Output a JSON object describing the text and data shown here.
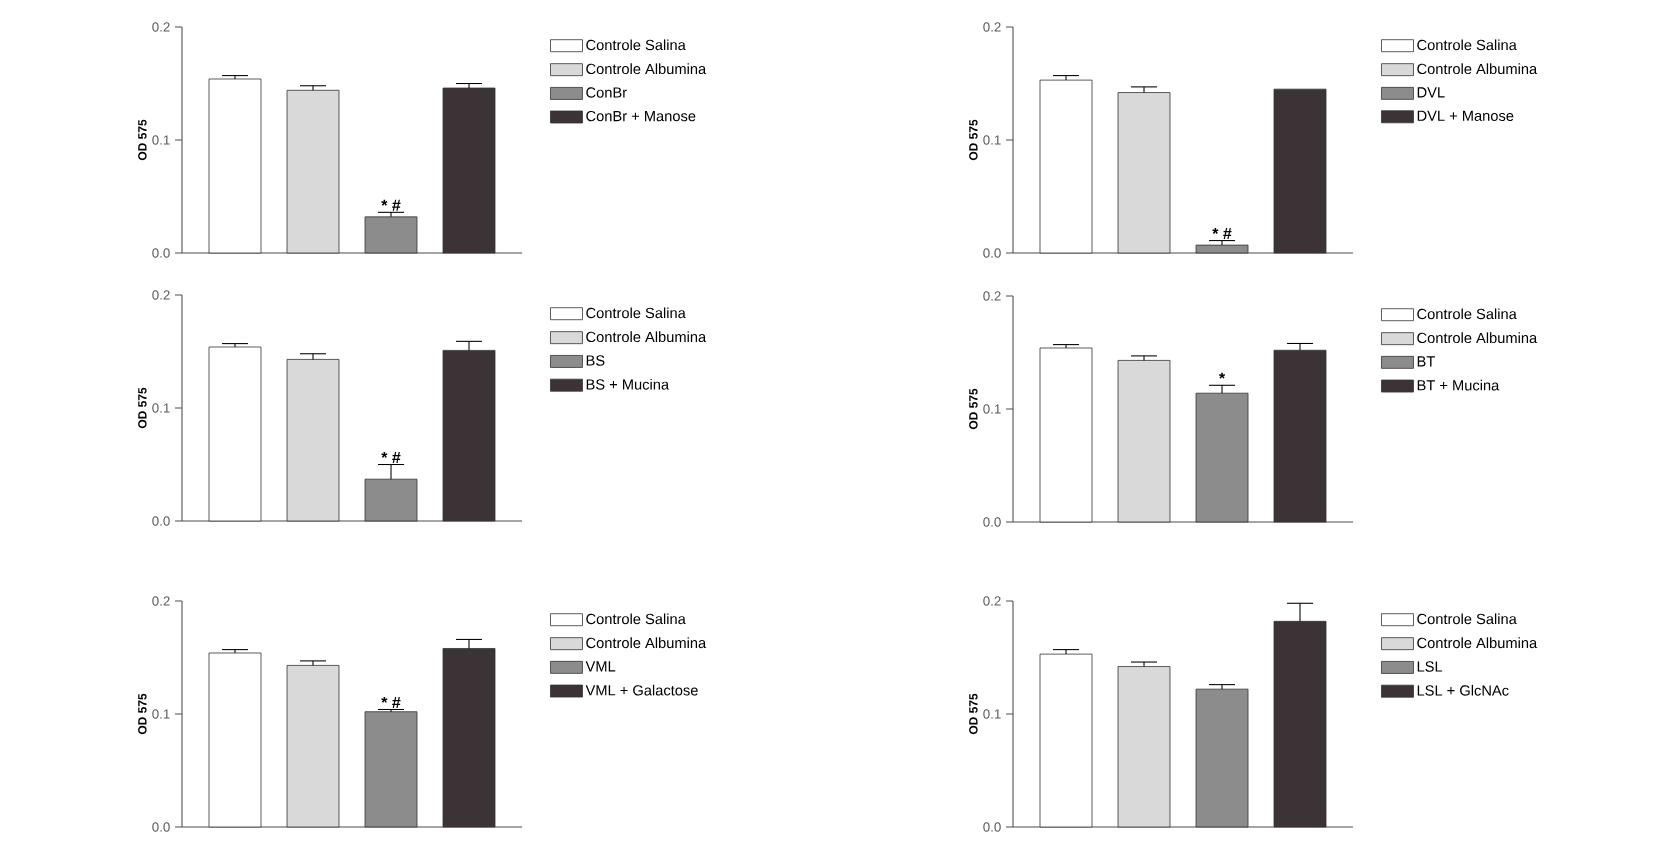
{
  "chart_data": [
    {
      "type": "bar",
      "categories": [
        null
      ],
      "ylabel": "OD 575",
      "ylim": [
        0,
        0.2
      ],
      "yticks": [
        {
          "value": 0,
          "label": "0.0"
        },
        {
          "value": 0.1,
          "label": "0.1"
        },
        {
          "value": 0.2,
          "label": "0.2"
        }
      ],
      "legend": "right",
      "annotations": [
        {
          "text": "* #",
          "y": 0.032
        }
      ],
      "series": [
        {
          "name": "Controle Salina",
          "color": "#ffffff",
          "values": [
            0.154
          ],
          "errors": [
            0.003
          ]
        },
        {
          "name": "Controle Albumina",
          "color": "#d9d9d9",
          "values": [
            0.144
          ],
          "errors": [
            0.004
          ]
        },
        {
          "name": "ConBr",
          "color": "#8c8c8c",
          "values": [
            0.032
          ],
          "errors": [
            0.004
          ]
        },
        {
          "name": "ConBr + Manose",
          "color": "#3b3335",
          "values": [
            0.146
          ],
          "errors": [
            0.004
          ]
        }
      ]
    },
    {
      "type": "bar",
      "categories": [
        null
      ],
      "ylabel": "OD 575",
      "ylim": [
        0,
        0.2
      ],
      "yticks": [
        {
          "value": 0,
          "label": "0.0"
        },
        {
          "value": 0.1,
          "label": "0.1"
        },
        {
          "value": 0.2,
          "label": "0.2"
        }
      ],
      "legend": "right",
      "annotations": [
        {
          "text": "* #",
          "y": 0.007
        }
      ],
      "series": [
        {
          "name": "Controle Salina",
          "color": "#ffffff",
          "values": [
            0.153
          ],
          "errors": [
            0.004
          ]
        },
        {
          "name": "Controle Albumina",
          "color": "#d9d9d9",
          "values": [
            0.142
          ],
          "errors": [
            0.005
          ]
        },
        {
          "name": "DVL",
          "color": "#8c8c8c",
          "values": [
            0.007
          ],
          "errors": [
            0.004
          ]
        },
        {
          "name": "DVL + Manose",
          "color": "#3b3335",
          "values": [
            0.145
          ],
          "errors": [
            null
          ]
        }
      ]
    },
    {
      "type": "bar",
      "categories": [
        null
      ],
      "ylabel": "OD 575",
      "ylim": [
        0,
        0.2
      ],
      "yticks": [
        {
          "value": 0,
          "label": "0.0"
        },
        {
          "value": 0.1,
          "label": "0.1"
        },
        {
          "value": 0.2,
          "label": "0.2"
        }
      ],
      "legend": "right",
      "annotations": [
        {
          "text": "* #",
          "y": 0.037
        }
      ],
      "series": [
        {
          "name": "Controle Salina",
          "color": "#ffffff",
          "values": [
            0.154
          ],
          "errors": [
            0.003
          ]
        },
        {
          "name": "Controle Albumina",
          "color": "#d9d9d9",
          "values": [
            0.143
          ],
          "errors": [
            0.005
          ]
        },
        {
          "name": "BS",
          "color": "#8c8c8c",
          "values": [
            0.037
          ],
          "errors": [
            0.013
          ]
        },
        {
          "name": "BS + Mucina",
          "color": "#3b3335",
          "values": [
            0.151
          ],
          "errors": [
            0.008
          ]
        }
      ]
    },
    {
      "type": "bar",
      "categories": [
        null
      ],
      "ylabel": "OD 575",
      "ylim": [
        0,
        0.2
      ],
      "yticks": [
        {
          "value": 0,
          "label": "0.0"
        },
        {
          "value": 0.1,
          "label": "0.1"
        },
        {
          "value": 0.2,
          "label": "0.2"
        }
      ],
      "legend": "right",
      "annotations": [
        {
          "text": "*",
          "y": 0.114
        }
      ],
      "series": [
        {
          "name": "Controle Salina",
          "color": "#ffffff",
          "values": [
            0.154
          ],
          "errors": [
            0.003
          ]
        },
        {
          "name": "Controle Albumina",
          "color": "#d9d9d9",
          "values": [
            0.143
          ],
          "errors": [
            0.004
          ]
        },
        {
          "name": "BT",
          "color": "#8c8c8c",
          "values": [
            0.114
          ],
          "errors": [
            0.007
          ]
        },
        {
          "name": "BT + Mucina",
          "color": "#3b3335",
          "values": [
            0.152
          ],
          "errors": [
            0.006
          ]
        }
      ]
    },
    {
      "type": "bar",
      "categories": [
        null
      ],
      "ylabel": "OD 575",
      "ylim": [
        0,
        0.2
      ],
      "yticks": [
        {
          "value": 0,
          "label": "0.0"
        },
        {
          "value": 0.1,
          "label": "0.1"
        },
        {
          "value": 0.2,
          "label": "0.2"
        }
      ],
      "legend": "right",
      "annotations": [
        {
          "text": "* #",
          "y": 0.102
        }
      ],
      "series": [
        {
          "name": "Controle Salina",
          "color": "#ffffff",
          "values": [
            0.154
          ],
          "errors": [
            0.003
          ]
        },
        {
          "name": "Controle Albumina",
          "color": "#d9d9d9",
          "values": [
            0.143
          ],
          "errors": [
            0.004
          ]
        },
        {
          "name": "VML",
          "color": "#8c8c8c",
          "values": [
            0.102
          ],
          "errors": [
            0.002
          ]
        },
        {
          "name": "VML + Galactose",
          "color": "#3b3335",
          "values": [
            0.158
          ],
          "errors": [
            0.008
          ]
        }
      ]
    },
    {
      "type": "bar",
      "categories": [
        null
      ],
      "ylabel": "OD 575",
      "ylim": [
        0,
        0.2
      ],
      "yticks": [
        {
          "value": 0,
          "label": "0.0"
        },
        {
          "value": 0.1,
          "label": "0.1"
        },
        {
          "value": 0.2,
          "label": "0.2"
        }
      ],
      "legend": "right",
      "series": [
        {
          "name": "Controle Salina",
          "color": "#ffffff",
          "values": [
            0.153
          ],
          "errors": [
            0.004
          ]
        },
        {
          "name": "Controle Albumina",
          "color": "#d9d9d9",
          "values": [
            0.142
          ],
          "errors": [
            0.004
          ]
        },
        {
          "name": "LSL",
          "color": "#8c8c8c",
          "values": [
            0.122
          ],
          "errors": [
            0.004
          ]
        },
        {
          "name": "LSL + GlcNAc",
          "color": "#3b3335",
          "values": [
            0.182
          ],
          "errors": [
            0.016
          ]
        }
      ]
    }
  ]
}
